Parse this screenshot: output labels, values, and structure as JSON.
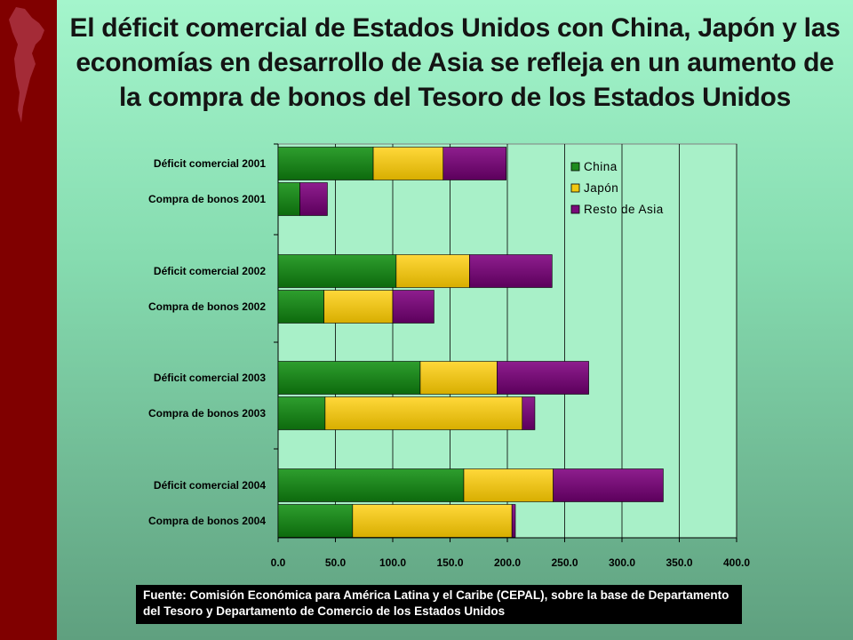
{
  "slide": {
    "title": "El déficit comercial de Estados Unidos con China, Japón y las economías en desarrollo de Asia se refleja en un aumento de la compra de bonos del Tesoro de los Estados Unidos",
    "source_note": "Fuente: Comisión Económica para América Latina y el Caribe (CEPAL), sobre la base de Departamento del Tesoro y Departamento de Comercio de los Estados Unidos"
  },
  "colors": {
    "sidebar": "#800000",
    "china": "#1e8c1e",
    "japon": "#f2c80f",
    "resto": "#7a0a7a"
  },
  "chart_data": {
    "type": "bar",
    "orientation": "horizontal",
    "stacked": true,
    "categories": [
      "Déficit comercial 2001",
      "Compra de bonos 2001",
      "Déficit comercial 2002",
      "Compra de bonos 2002",
      "Déficit comercial 2003",
      "Compra de bonos 2003",
      "Déficit comercial 2004",
      "Compra de bonos 2004"
    ],
    "series": [
      {
        "name": "China",
        "values": [
          83,
          19,
          103,
          40,
          124,
          41,
          162,
          65
        ]
      },
      {
        "name": "Japón",
        "values": [
          61,
          0,
          64,
          60,
          67,
          172,
          78,
          139
        ]
      },
      {
        "name": "Resto de Asia",
        "values": [
          55,
          24,
          72,
          36,
          80,
          11,
          96,
          3
        ]
      }
    ],
    "xlim": [
      0,
      400
    ],
    "xticks": [
      "0.0",
      "50.0",
      "100.0",
      "150.0",
      "200.0",
      "250.0",
      "300.0",
      "350.0",
      "400.0"
    ],
    "grid": true,
    "legend_position": "top-right"
  }
}
